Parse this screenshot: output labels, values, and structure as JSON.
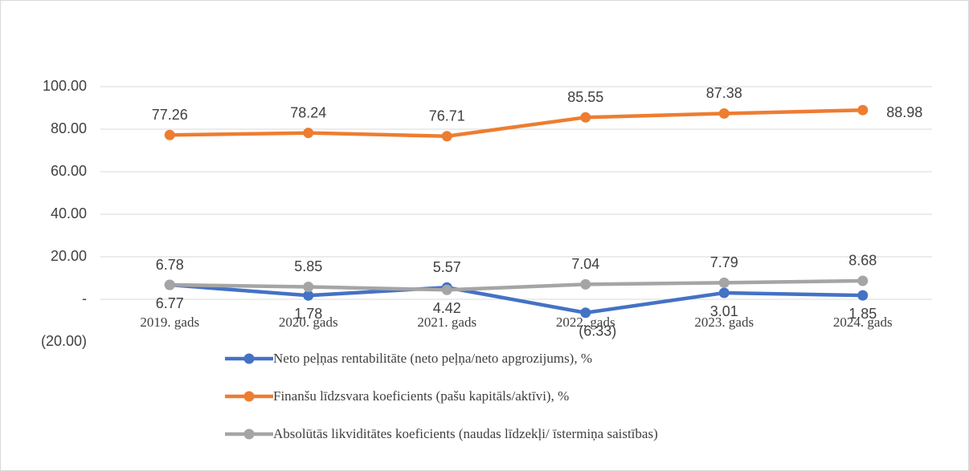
{
  "chart_data": {
    "type": "line",
    "categories": [
      "2019. gads",
      "2020. gads",
      "2021. gads",
      "2022. gads",
      "2023. gads",
      "2024. gads"
    ],
    "series": [
      {
        "name": "Neto peļņas rentabilitāte (neto peļņa/neto apgrozijums), %",
        "color": "#4472c4",
        "values": [
          6.77,
          1.78,
          5.57,
          -6.33,
          3.01,
          1.85
        ],
        "value_labels": [
          "6.77",
          "1.78",
          "5.57",
          "(6.33)",
          "3.01",
          "1.85"
        ]
      },
      {
        "name": "Finanšu līdzsvara koeficients (pašu kapitāls/aktīvi), %",
        "color": "#ed7d31",
        "values": [
          77.26,
          78.24,
          76.71,
          85.55,
          87.38,
          88.98
        ],
        "value_labels": [
          "77.26",
          "78.24",
          "76.71",
          "85.55",
          "87.38",
          "88.98"
        ]
      },
      {
        "name": "Absolūtās likviditātes koeficients (naudas līdzekļi/ īstermiņa saistības)",
        "color": "#a5a5a5",
        "values": [
          6.78,
          5.85,
          4.42,
          7.04,
          7.79,
          8.68
        ],
        "value_labels": [
          "6.78",
          "5.85",
          "4.42",
          "7.04",
          "7.79",
          "8.68"
        ]
      }
    ],
    "ylim": [
      -20,
      100
    ],
    "yticks": [
      {
        "value": 100,
        "label": "100.00"
      },
      {
        "value": 80,
        "label": "80.00"
      },
      {
        "value": 60,
        "label": "60.00"
      },
      {
        "value": 40,
        "label": "40.00"
      },
      {
        "value": 20,
        "label": "20.00"
      },
      {
        "value": 0,
        "label": "-"
      },
      {
        "value": -20,
        "label": "(20.00)"
      }
    ],
    "grid": true,
    "legend": "bottom"
  }
}
